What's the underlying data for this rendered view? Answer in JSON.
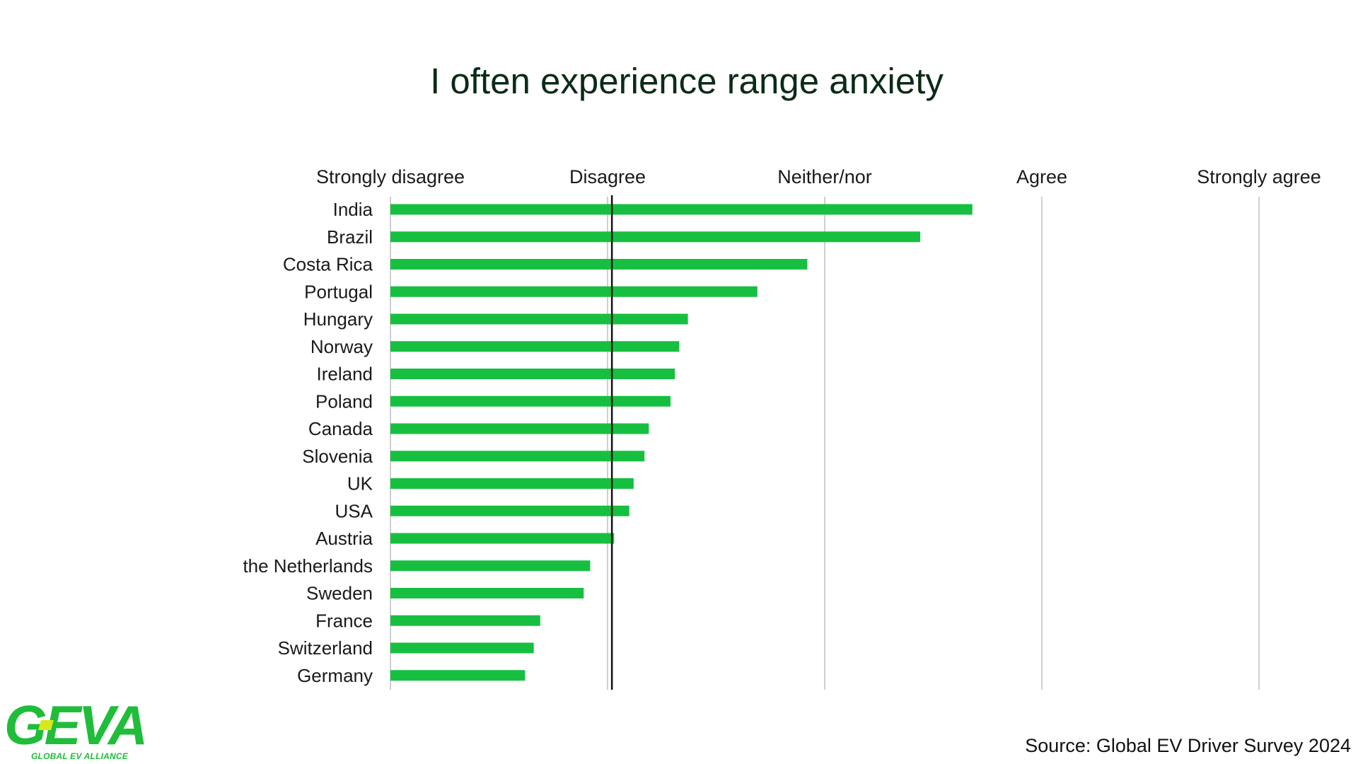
{
  "chart_data": {
    "type": "bar",
    "orientation": "horizontal",
    "title": "I often experience range anxiety",
    "scale_labels": [
      "Strongly disagree",
      "Disagree",
      "Neither/nor",
      "Agree",
      "Strongly agree"
    ],
    "xlim": [
      1,
      5
    ],
    "reference_value": 2.02,
    "grid": true,
    "categories": [
      "India",
      "Brazil",
      "Costa Rica",
      "Portugal",
      "Hungary",
      "Norway",
      "Ireland",
      "Poland",
      "Canada",
      "Slovenia",
      "UK",
      "USA",
      "Austria",
      "the Netherlands",
      "Sweden",
      "France",
      "Switzerland",
      "Germany"
    ],
    "values": [
      3.68,
      3.44,
      2.92,
      2.69,
      2.37,
      2.33,
      2.31,
      2.29,
      2.19,
      2.17,
      2.12,
      2.1,
      2.03,
      1.92,
      1.89,
      1.69,
      1.66,
      1.62
    ],
    "colors": {
      "bar": "#17bf40",
      "grid": "#cfcfcf",
      "reference": "#111111",
      "title": "#0b2b17"
    }
  },
  "footer": {
    "source": "Source: Global EV Driver Survey 2024"
  },
  "logo": {
    "wordmark": "GEVA",
    "tagline": "GLOBAL EV ALLIANCE",
    "color": "#1fbd3a",
    "accent": "#d7e81c"
  }
}
